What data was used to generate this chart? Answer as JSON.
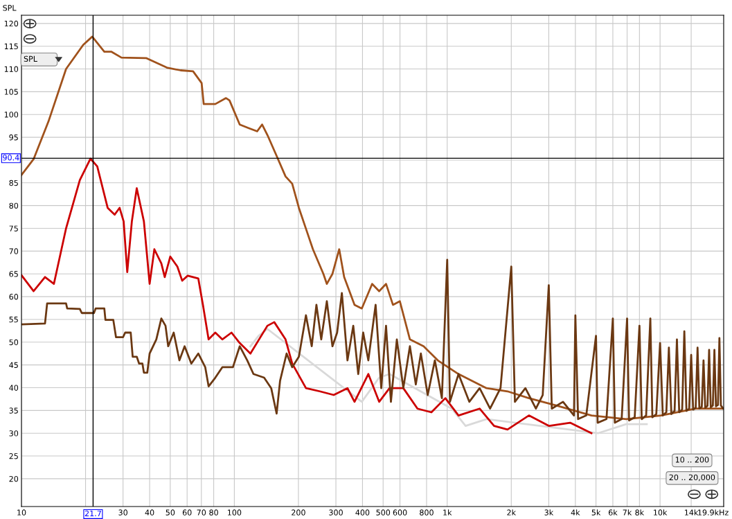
{
  "chart_data": {
    "type": "line",
    "ylabel": "SPL",
    "xlabel": "Hz",
    "log": "x",
    "grid": true,
    "legend": false,
    "marker": "none",
    "line_style": "solid",
    "xlim": [
      10,
      19900
    ],
    "ylim": [
      13.9,
      121.8
    ],
    "xticks": [
      10,
      {
        "value": 20,
        "label": null
      },
      30,
      40,
      50,
      60,
      70,
      80,
      100,
      200,
      300,
      400,
      500,
      600,
      800,
      {
        "value": 1000,
        "label": "1k"
      },
      {
        "value": 2000,
        "label": "2k"
      },
      {
        "value": 3000,
        "label": "3k"
      },
      {
        "value": 4000,
        "label": "4k"
      },
      {
        "value": 5000,
        "label": "5k"
      },
      {
        "value": 6000,
        "label": "6k"
      },
      {
        "value": 7000,
        "label": "7k"
      },
      {
        "value": 8000,
        "label": "8k"
      },
      {
        "value": 10000,
        "label": "10k"
      },
      {
        "value": 14000,
        "label": "14k"
      },
      {
        "value": 19900,
        "label": "19.9k"
      }
    ],
    "yticks": [
      20,
      25,
      30,
      35,
      40,
      45,
      50,
      55,
      60,
      65,
      70,
      75,
      80,
      85,
      {
        "value": 90,
        "label": null
      },
      95,
      100,
      105,
      110,
      115,
      120
    ],
    "ref_lines": [
      {
        "axis": "x",
        "value": 21.7,
        "label": "21.7",
        "color": "#000000"
      },
      {
        "axis": "y",
        "value": 90.4,
        "label": "90.4",
        "color": "#000000"
      }
    ],
    "annotations": [
      "SPL",
      "10 .. 200",
      "20 .. 20,000"
    ],
    "series": [
      {
        "color": "#d9d9d9",
        "x": [
          119,
          130,
          143,
          397,
          479,
          536,
          1050,
          1220,
          1530,
          5110,
          6930,
          8660
        ],
        "values": [
          49.1,
          51.4,
          52.9,
          36.9,
          42.2,
          43,
          35.4,
          31.6,
          33.1,
          30,
          32,
          32
        ]
      },
      {
        "color": "#cc0000",
        "x": [
          10,
          11.4,
          12.9,
          14.2,
          16.2,
          18.8,
          21.1,
          22.7,
          25.4,
          27.4,
          28.9,
          30.2,
          31.4,
          33,
          34.8,
          37.6,
          40,
          42.1,
          45.4,
          47.1,
          50,
          54,
          56.9,
          60.4,
          67.7,
          71.2,
          75.7,
          81.4,
          87.8,
          97,
          106,
          119,
          143,
          154,
          174,
          187,
          217,
          252,
          293,
          340,
          367,
          426,
          479,
          536,
          622,
          725,
          843,
          980,
          1130,
          1420,
          1660,
          1920,
          2420,
          3010,
          3780,
          4760
        ],
        "values": [
          64.7,
          61.2,
          64.3,
          62.8,
          75,
          85.6,
          90.3,
          88.6,
          79.5,
          78,
          79.5,
          76.5,
          65.4,
          76.5,
          83.8,
          76.5,
          62.8,
          70.4,
          67.3,
          64.3,
          68.8,
          66.6,
          63.5,
          64.6,
          64,
          58.2,
          50.6,
          52.1,
          50.6,
          52.1,
          49.8,
          47.5,
          53.6,
          54.4,
          50.6,
          45.3,
          39.9,
          39.2,
          38.4,
          39.9,
          36.9,
          43,
          36.9,
          39.9,
          39.9,
          35.4,
          34.6,
          37.7,
          33.9,
          35.4,
          31.6,
          30.8,
          33.9,
          31.6,
          32.3,
          30
        ]
      },
      {
        "color": "#a0521c",
        "x": [
          10,
          11.4,
          13.4,
          16.2,
          19.5,
          21.5,
          24.5,
          26.4,
          29.5,
          38.5,
          48.2,
          55.9,
          64,
          70.2,
          71.8,
          81.4,
          91.4,
          94.9,
          106,
          117,
          128,
          135,
          143,
          158,
          174,
          187,
          201,
          217,
          234,
          262,
          272,
          289,
          311,
          328,
          367,
          397,
          444,
          479,
          516,
          556,
          599,
          668,
          775,
          903,
          1130,
          1530,
          1920,
          2420,
          3250,
          4760,
          6930,
          10100,
          14700,
          19800
        ],
        "values": [
          86.7,
          90.2,
          98.5,
          110,
          115.3,
          117.1,
          113.8,
          113.8,
          112.5,
          112.4,
          110.3,
          109.7,
          109.5,
          106.9,
          102.3,
          102.3,
          103.6,
          103.1,
          97.8,
          97,
          96.3,
          97.8,
          95.5,
          90.9,
          86.4,
          84.8,
          79.5,
          74.9,
          70.4,
          65,
          62.8,
          65,
          70.4,
          64.3,
          58.2,
          57.4,
          62.8,
          61.2,
          62.8,
          58.2,
          59,
          50.6,
          49.1,
          46,
          43,
          39.9,
          39.2,
          37.7,
          36.1,
          33.9,
          33.1,
          33.9,
          35.4,
          35.4
        ]
      },
      {
        "color": "#6b3812",
        "x": [
          10,
          12.9,
          13.2,
          16.2,
          16.4,
          18.8,
          19.2,
          21.9,
          22.3,
          24.5,
          24.8,
          27,
          27.8,
          30,
          30.7,
          32.6,
          33.3,
          34.8,
          35.7,
          37,
          37.6,
          39,
          40,
          43,
          45.4,
          47.5,
          48.9,
          51.9,
          55.2,
          58.4,
          62.8,
          67.7,
          73,
          75.7,
          81.4,
          87.8,
          98.5,
          106,
          115,
          123,
          138,
          149,
          158,
          164,
          176,
          187,
          201,
          217,
          231,
          243,
          256,
          272,
          289,
          304,
          320,
          340,
          362,
          382,
          403,
          426,
          461,
          490,
          516,
          544,
          580,
          622,
          668,
          712,
          752,
          810,
          875,
          944,
          1000,
          1030,
          1130,
          1270,
          1420,
          1590,
          1780,
          2000,
          2080,
          2330,
          2610,
          2810,
          3000,
          3100,
          3500,
          3940,
          4000,
          4120,
          4500,
          5000,
          5090,
          5600,
          6000,
          6130,
          6600,
          7000,
          7150,
          7600,
          8000,
          8200,
          8600,
          9000,
          9200,
          9600,
          10000,
          10300,
          10700,
          11000,
          11300,
          11700,
          12000,
          12300,
          12700,
          13000,
          13300,
          13700,
          14000,
          14300,
          14700,
          15000,
          15300,
          15700,
          16000,
          16300,
          16700,
          17000,
          17300,
          17700,
          18000,
          18300,
          18700,
          19000,
          19300,
          19800
        ],
        "values": [
          53.9,
          54.1,
          58.5,
          58.5,
          57.4,
          57.3,
          56.4,
          56.4,
          57.4,
          57.4,
          54.9,
          54.9,
          51.1,
          51.1,
          52.1,
          52.1,
          46.8,
          46.8,
          45.3,
          45.3,
          43.3,
          43.3,
          47.5,
          50.6,
          55.2,
          53.6,
          49.1,
          52.1,
          46,
          49.1,
          45.3,
          47.5,
          44.5,
          40.3,
          42.2,
          44.5,
          44.5,
          49.1,
          46,
          43,
          42.2,
          39.9,
          34.3,
          41.5,
          47.5,
          44.5,
          46.8,
          55.9,
          49.1,
          58.2,
          50.6,
          59,
          49.1,
          52.1,
          60.8,
          46,
          53.6,
          43,
          52.1,
          46,
          58.2,
          39.9,
          53.6,
          36.9,
          50.6,
          39.9,
          49.1,
          40.7,
          47.5,
          38.4,
          46,
          37.7,
          68.1,
          36.9,
          43,
          36.9,
          39.9,
          35.4,
          39.9,
          66.6,
          36.9,
          39.9,
          35.4,
          38.4,
          62.5,
          35.4,
          36.9,
          33.9,
          55.9,
          33.1,
          33.9,
          51.4,
          32.3,
          33.1,
          55.2,
          32.3,
          33.1,
          55.2,
          32.8,
          33.5,
          53.6,
          33.1,
          33.9,
          55.2,
          33.5,
          34.2,
          49.8,
          33.9,
          34.6,
          48.8,
          34.2,
          34.9,
          50.6,
          34.6,
          35.2,
          52.4,
          34.9,
          35.4,
          47.2,
          35.2,
          35.6,
          48.8,
          35.4,
          35.8,
          46,
          35.6,
          36,
          48.3,
          35.7,
          36.1,
          48.3,
          35.9,
          36.2,
          50.9,
          36.1,
          35.4
        ]
      }
    ]
  }
}
